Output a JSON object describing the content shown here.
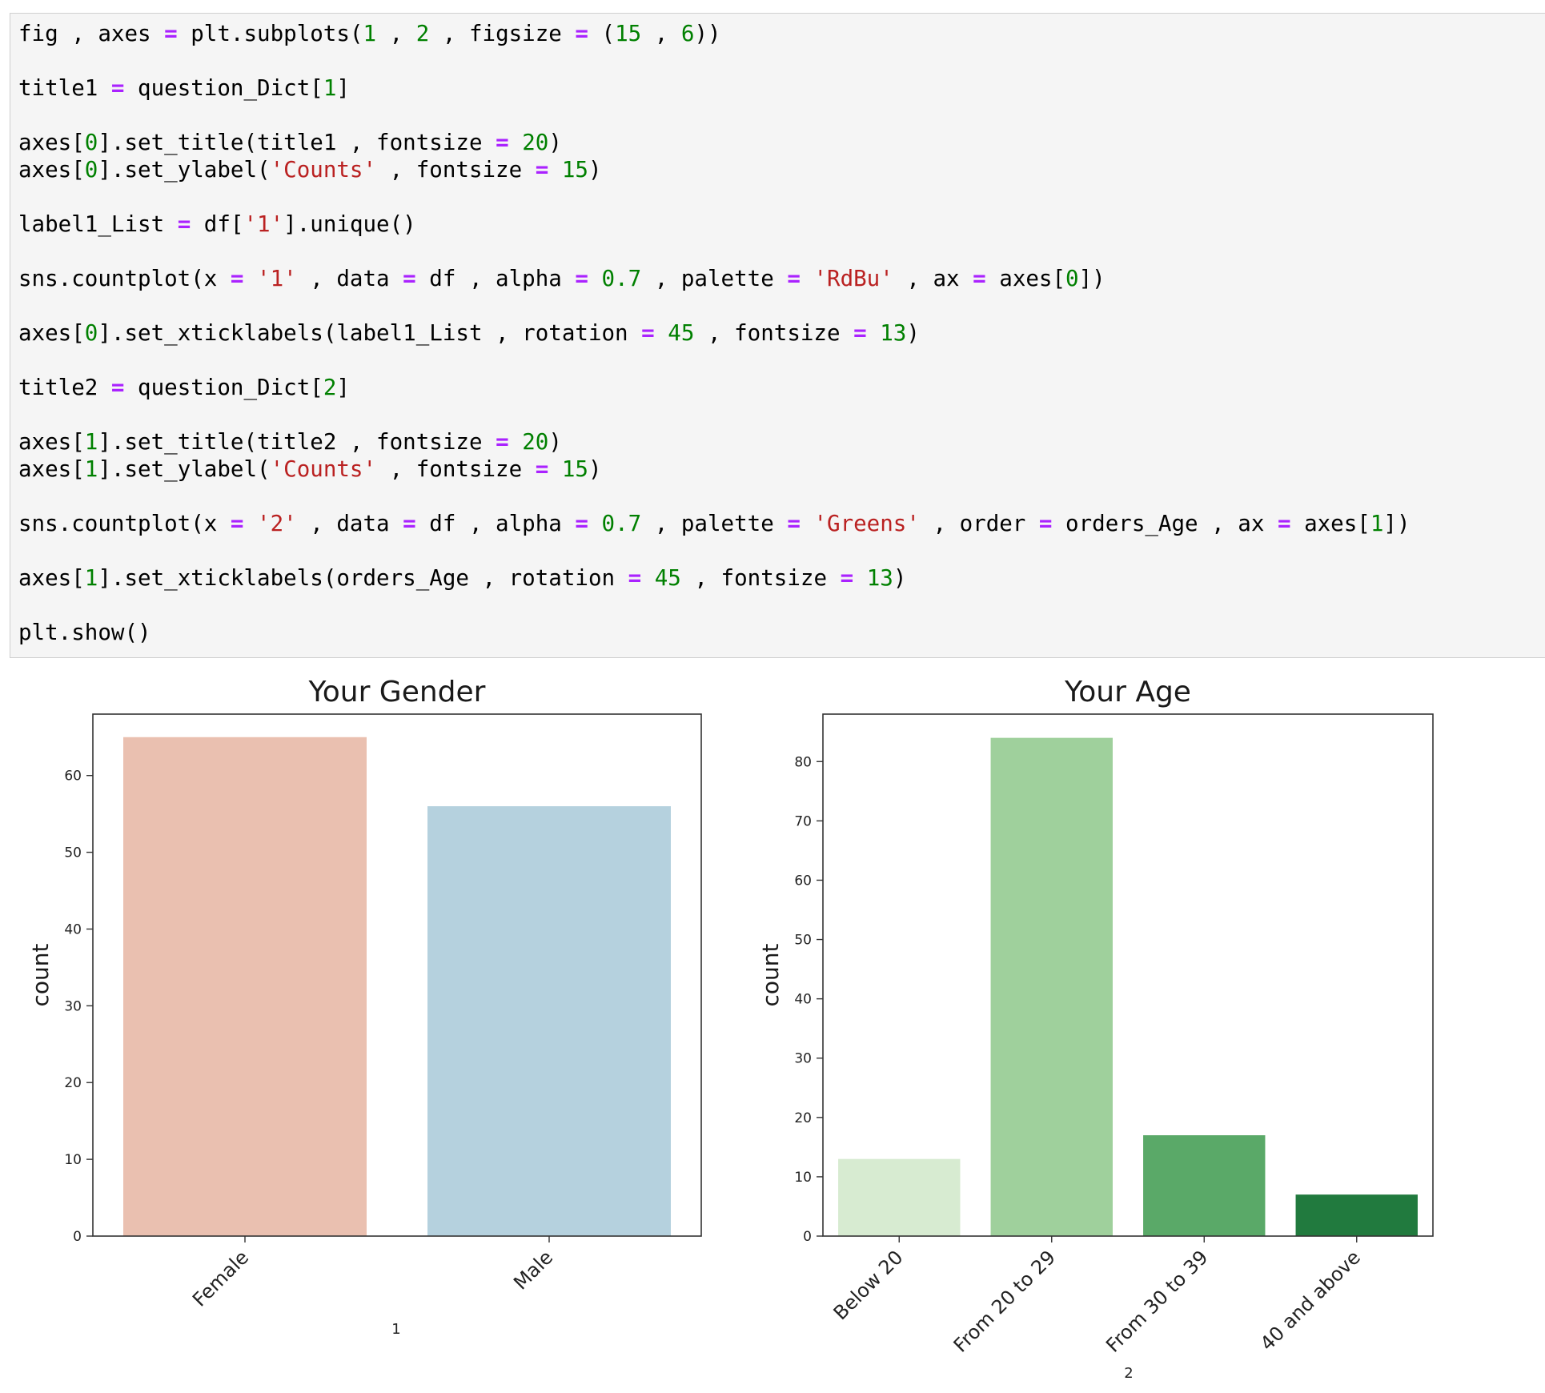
{
  "code_cell": {
    "lines": [
      [
        [
          "fig , axes ",
          ""
        ],
        [
          "=",
          "op"
        ],
        [
          " plt.subplots(",
          ""
        ],
        [
          "1",
          "num"
        ],
        [
          " , ",
          ""
        ],
        [
          "2",
          "num"
        ],
        [
          " , figsize ",
          ""
        ],
        [
          "=",
          "op"
        ],
        [
          " (",
          ""
        ],
        [
          "15",
          "num"
        ],
        [
          " , ",
          ""
        ],
        [
          "6",
          "num"
        ],
        [
          "))",
          ""
        ]
      ],
      [],
      [
        [
          "title1 ",
          ""
        ],
        [
          "=",
          "op"
        ],
        [
          " question_Dict[",
          ""
        ],
        [
          "1",
          "num"
        ],
        [
          "]",
          ""
        ]
      ],
      [],
      [
        [
          "axes[",
          ""
        ],
        [
          "0",
          "num"
        ],
        [
          "].set_title(title1 , fontsize ",
          ""
        ],
        [
          "=",
          "op"
        ],
        [
          " ",
          ""
        ],
        [
          "20",
          "num"
        ],
        [
          ")",
          ""
        ]
      ],
      [
        [
          "axes[",
          ""
        ],
        [
          "0",
          "num"
        ],
        [
          "].set_ylabel(",
          ""
        ],
        [
          "'Counts'",
          "str"
        ],
        [
          " , fontsize ",
          ""
        ],
        [
          "=",
          "op"
        ],
        [
          " ",
          ""
        ],
        [
          "15",
          "num"
        ],
        [
          ")",
          ""
        ]
      ],
      [],
      [
        [
          "label1_List ",
          ""
        ],
        [
          "=",
          "op"
        ],
        [
          " df[",
          ""
        ],
        [
          "'1'",
          "str"
        ],
        [
          "].unique()",
          ""
        ]
      ],
      [],
      [
        [
          "sns.countplot(x ",
          ""
        ],
        [
          "=",
          "op"
        ],
        [
          " ",
          ""
        ],
        [
          "'1'",
          "str"
        ],
        [
          " , data ",
          ""
        ],
        [
          "=",
          "op"
        ],
        [
          " df , alpha ",
          ""
        ],
        [
          "=",
          "op"
        ],
        [
          " ",
          ""
        ],
        [
          "0.7",
          "num"
        ],
        [
          " , palette ",
          ""
        ],
        [
          "=",
          "op"
        ],
        [
          " ",
          ""
        ],
        [
          "'RdBu'",
          "str"
        ],
        [
          " , ax ",
          ""
        ],
        [
          "=",
          "op"
        ],
        [
          " axes[",
          ""
        ],
        [
          "0",
          "num"
        ],
        [
          "])",
          ""
        ]
      ],
      [],
      [
        [
          "axes[",
          ""
        ],
        [
          "0",
          "num"
        ],
        [
          "].set_xticklabels(label1_List , rotation ",
          ""
        ],
        [
          "=",
          "op"
        ],
        [
          " ",
          ""
        ],
        [
          "45",
          "num"
        ],
        [
          " , fontsize ",
          ""
        ],
        [
          "=",
          "op"
        ],
        [
          " ",
          ""
        ],
        [
          "13",
          "num"
        ],
        [
          ")",
          ""
        ]
      ],
      [],
      [
        [
          "title2 ",
          ""
        ],
        [
          "=",
          "op"
        ],
        [
          " question_Dict[",
          ""
        ],
        [
          "2",
          "num"
        ],
        [
          "]",
          ""
        ]
      ],
      [],
      [
        [
          "axes[",
          ""
        ],
        [
          "1",
          "num"
        ],
        [
          "].set_title(title2 , fontsize ",
          ""
        ],
        [
          "=",
          "op"
        ],
        [
          " ",
          ""
        ],
        [
          "20",
          "num"
        ],
        [
          ")",
          ""
        ]
      ],
      [
        [
          "axes[",
          ""
        ],
        [
          "1",
          "num"
        ],
        [
          "].set_ylabel(",
          ""
        ],
        [
          "'Counts'",
          "str"
        ],
        [
          " , fontsize ",
          ""
        ],
        [
          "=",
          "op"
        ],
        [
          " ",
          ""
        ],
        [
          "15",
          "num"
        ],
        [
          ")",
          ""
        ]
      ],
      [],
      [
        [
          "sns.countplot(x ",
          ""
        ],
        [
          "=",
          "op"
        ],
        [
          " ",
          ""
        ],
        [
          "'2'",
          "str"
        ],
        [
          " , data ",
          ""
        ],
        [
          "=",
          "op"
        ],
        [
          " df , alpha ",
          ""
        ],
        [
          "=",
          "op"
        ],
        [
          " ",
          ""
        ],
        [
          "0.7",
          "num"
        ],
        [
          " , palette ",
          ""
        ],
        [
          "=",
          "op"
        ],
        [
          " ",
          ""
        ],
        [
          "'Greens'",
          "str"
        ],
        [
          " , order ",
          ""
        ],
        [
          "=",
          "op"
        ],
        [
          " orders_Age , ax ",
          ""
        ],
        [
          "=",
          "op"
        ],
        [
          " axes[",
          ""
        ],
        [
          "1",
          "num"
        ],
        [
          "])",
          ""
        ]
      ],
      [],
      [
        [
          "axes[",
          ""
        ],
        [
          "1",
          "num"
        ],
        [
          "].set_xticklabels(orders_Age , rotation ",
          ""
        ],
        [
          "=",
          "op"
        ],
        [
          " ",
          ""
        ],
        [
          "45",
          "num"
        ],
        [
          " , fontsize ",
          ""
        ],
        [
          "=",
          "op"
        ],
        [
          " ",
          ""
        ],
        [
          "13",
          "num"
        ],
        [
          ")",
          ""
        ]
      ],
      [],
      [
        [
          "plt.show()",
          ""
        ]
      ]
    ]
  },
  "chart_data": [
    {
      "type": "bar",
      "title": "Your Gender",
      "xlabel": "1",
      "ylabel": "count",
      "categories": [
        "Female",
        "Male"
      ],
      "values": [
        65,
        56
      ],
      "colors": [
        "#eac0b0",
        "#b5d1de"
      ],
      "ylim": [
        0,
        68
      ],
      "yticks": [
        "0",
        "10",
        "20",
        "30",
        "40",
        "50",
        "60"
      ],
      "grid": false
    },
    {
      "type": "bar",
      "title": "Your Age",
      "xlabel": "2",
      "ylabel": "count",
      "categories": [
        "Below 20",
        "From 20 to 29",
        "From 30 to 39",
        "40 and above"
      ],
      "values": [
        13,
        84,
        17,
        7
      ],
      "colors": [
        "#d7ebd1",
        "#9fd09c",
        "#5aa968",
        "#217a3e"
      ],
      "ylim": [
        0,
        88
      ],
      "yticks": [
        "0",
        "10",
        "20",
        "30",
        "40",
        "50",
        "60",
        "70",
        "80"
      ],
      "grid": false
    }
  ]
}
